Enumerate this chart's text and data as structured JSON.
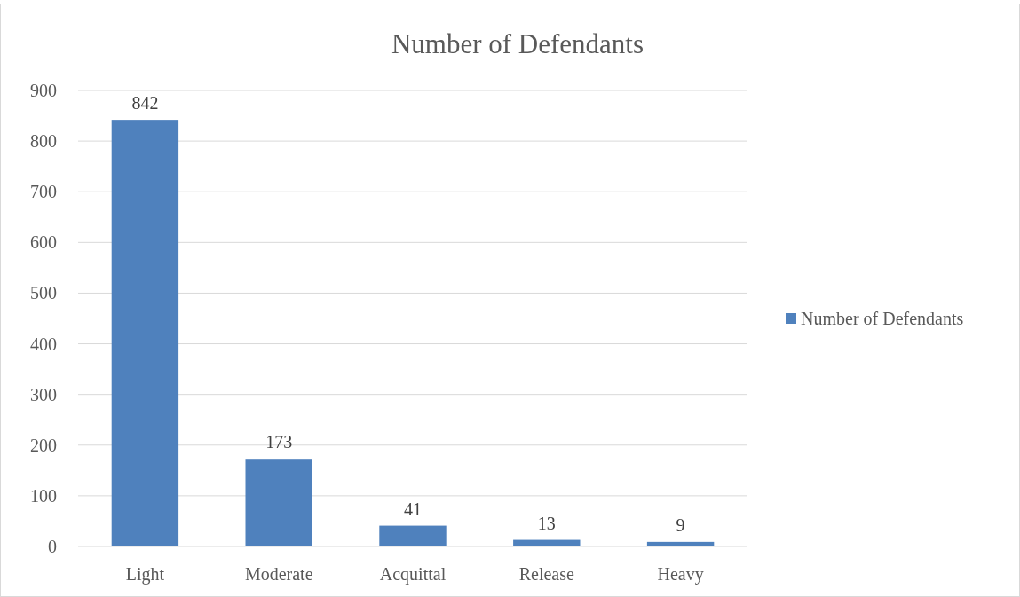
{
  "chart_data": {
    "type": "bar",
    "title": "Number of Defendants",
    "categories": [
      "Light",
      "Moderate",
      "Acquittal",
      "Release",
      "Heavy"
    ],
    "series": [
      {
        "name": "Number of Defendants",
        "color": "#4f81bd",
        "values": [
          842,
          173,
          41,
          13,
          9
        ]
      }
    ],
    "ylim": [
      0,
      900
    ],
    "yticks": [
      0,
      100,
      200,
      300,
      400,
      500,
      600,
      700,
      800,
      900
    ],
    "grid": "y",
    "legend": "right",
    "data_labels": true
  }
}
